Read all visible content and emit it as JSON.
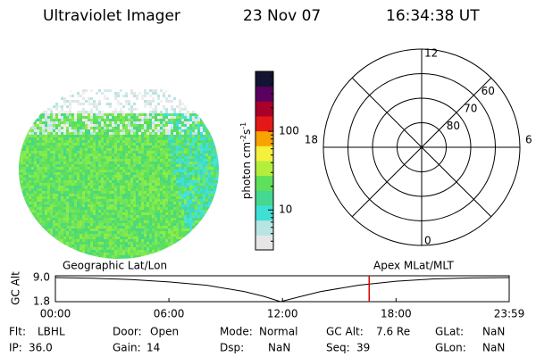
{
  "header": {
    "title": "Ultraviolet Imager",
    "date": "23 Nov 07",
    "time": "16:34:38 UT"
  },
  "colorbar": {
    "label": [
      "photon cm",
      "-2",
      "s",
      "-1"
    ],
    "scale": "log",
    "lim": [
      3.1,
      580
    ],
    "ticks": [
      10,
      100
    ],
    "minor_ticks": [
      4,
      5,
      6,
      7,
      8,
      9,
      20,
      30,
      40,
      50,
      60,
      70,
      80,
      90,
      200,
      300,
      400,
      500
    ],
    "colors": [
      "#e6e6e6",
      "#b8e4e4",
      "#3ee0d6",
      "#44d890",
      "#5ee05a",
      "#b4ee3c",
      "#f4f03c",
      "#f8a400",
      "#e41818",
      "#a80028",
      "#5a0060",
      "#141432"
    ]
  },
  "polar": {
    "rlim": [
      90,
      50
    ],
    "rticks": [
      60,
      70,
      80
    ],
    "mlt_ticks": [
      12,
      6,
      0,
      18
    ]
  },
  "altitude_plot": {
    "type": "line",
    "left_label": "Geographic Lat/Lon",
    "right_label": "Apex MLat/MLT",
    "ylabel": "GC Alt",
    "x": [
      0,
      2,
      4,
      6,
      8,
      10,
      11,
      11.9,
      13,
      14,
      16,
      18,
      20,
      22,
      23.98
    ],
    "values": [
      9.0,
      8.8,
      8.4,
      7.7,
      6.7,
      4.8,
      3.4,
      1.8,
      3.4,
      4.8,
      6.7,
      7.9,
      8.6,
      8.9,
      9.0
    ],
    "color": "#000000",
    "marker_x": 16.58,
    "marker_color": "#e00000",
    "xlim": [
      0,
      23.98
    ],
    "ylim": [
      1.8,
      9.0
    ],
    "xticks": [
      {
        "value": 0,
        "label": "00:00"
      },
      {
        "value": 6,
        "label": "06:00"
      },
      {
        "value": 12,
        "label": "12:00"
      },
      {
        "value": 18,
        "label": "18:00"
      },
      {
        "value": 23.98,
        "label": "23:59"
      }
    ],
    "yticks": [
      {
        "value": 9.0,
        "label": "9.0"
      },
      1.8
    ]
  },
  "status": [
    [
      {
        "label": "Flt:",
        "value": "LBHL"
      },
      {
        "label": "Door:",
        "value": "Open"
      },
      {
        "label": "Mode:",
        "value": "Normal"
      },
      {
        "label": "GC Alt:",
        "value": "7.6 Re"
      },
      {
        "label": "GLat:",
        "value": "NaN"
      }
    ],
    [
      {
        "label": "IP:",
        "value": "36.0"
      },
      {
        "label": "Gain:",
        "value": "14"
      },
      {
        "label": "Dsp:",
        "value": "NaN"
      },
      {
        "label": "Seq:",
        "value": "39"
      },
      {
        "label": "GLon:",
        "value": "NaN"
      }
    ]
  ]
}
